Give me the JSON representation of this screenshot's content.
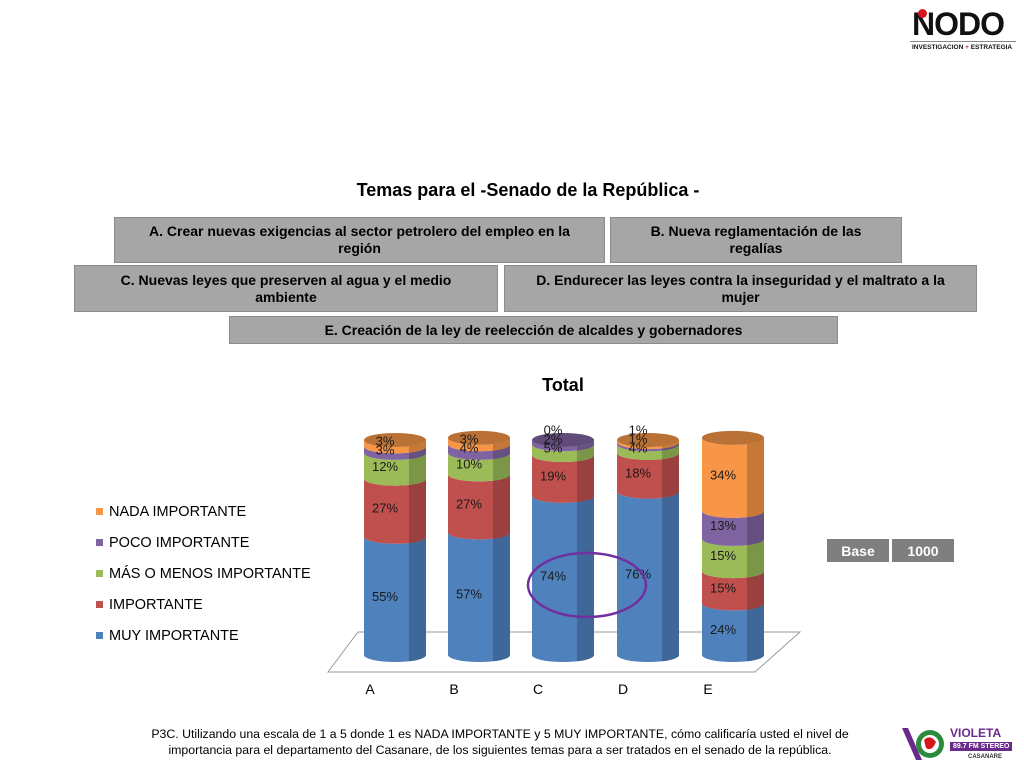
{
  "header": {
    "logo": {
      "text": "NODO",
      "subtitle_left": "INVESTIGACION",
      "subtitle_plus": "+",
      "subtitle_right": "ESTRATEGIA"
    },
    "title": "Temas para el -Senado de la República -"
  },
  "topics": {
    "a": "A. Crear nuevas exigencias al sector petrolero del empleo en la región",
    "b": "B. Nueva reglamentación de las regalías",
    "c": "C. Nuevas leyes que preserven al agua y el medio ambiente",
    "d": "D. Endurecer las leyes contra la inseguridad y el maltrato a la mujer",
    "e": "E. Creación de la ley de reelección de alcaldes y gobernadores"
  },
  "chart_data": {
    "type": "bar",
    "stacked": true,
    "style": "3d-cylinder",
    "title": "Total",
    "categories": [
      "A",
      "B",
      "C",
      "D",
      "E"
    ],
    "ylim": [
      0,
      100
    ],
    "legend_position": "left",
    "series": [
      {
        "name": "MUY IMPORTANTE",
        "color": "#4f81bd",
        "values": [
          55,
          57,
          74,
          76,
          24
        ]
      },
      {
        "name": "IMPORTANTE",
        "color": "#c0504d",
        "values": [
          27,
          27,
          19,
          18,
          15
        ]
      },
      {
        "name": "MÁS O MENOS IMPORTANTE",
        "color": "#9bbb59",
        "values": [
          12,
          10,
          5,
          4,
          15
        ]
      },
      {
        "name": "POCO IMPORTANTE",
        "color": "#8064a2",
        "values": [
          3,
          4,
          2,
          1,
          13
        ]
      },
      {
        "name": "NADA IMPORTANTE",
        "color": "#f79646",
        "values": [
          3,
          3,
          0,
          1,
          34
        ]
      }
    ],
    "data_labels": [
      [
        "55%",
        "27%",
        "12%",
        "3%",
        "3%"
      ],
      [
        "57%",
        "27%",
        "10%",
        "4%",
        "3%"
      ],
      [
        "74%",
        "19%",
        "5%",
        "2%",
        "0%"
      ],
      [
        "76%",
        "18%",
        "4%",
        "1%",
        "1%"
      ],
      [
        "24%",
        "15%",
        "15%",
        "13%",
        "34%"
      ]
    ],
    "highlight_circle": "C-D",
    "highlight_color": "#7030a0"
  },
  "legend_order": [
    "NADA IMPORTANTE",
    "POCO IMPORTANTE",
    "MÁS O MENOS IMPORTANTE",
    "IMPORTANTE",
    "MUY IMPORTANTE"
  ],
  "base": {
    "label": "Base",
    "value": "1000"
  },
  "footnote": "P3C. Utilizando una escala de 1 a 5 donde 1 es NADA IMPORTANTE y 5 MUY IMPORTANTE, cómo calificaría usted el nivel de importancia para el departamento del Casanare, de los siguientes temas para a ser tratados en el senado de la república.",
  "sponsor_logo": {
    "text": "VIOLETA",
    "freq": "89.7 FM   STEREO",
    "place": "CASANARE"
  }
}
